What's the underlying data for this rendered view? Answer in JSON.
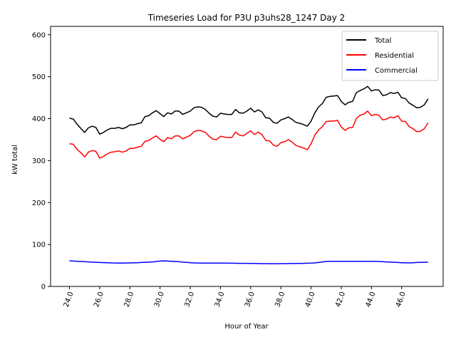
{
  "chart_data": {
    "type": "line",
    "title": "Timeseries Load for P3U p3uhs28_1247  Day 2",
    "xlabel": "Hour of Year",
    "ylabel": "kW total",
    "xlim": [
      22.75,
      48.75
    ],
    "ylim": [
      0,
      620
    ],
    "xticks": [
      24,
      26,
      28,
      30,
      32,
      34,
      36,
      38,
      40,
      42,
      44,
      46
    ],
    "xtick_labels": [
      "24.0",
      "26.0",
      "28.0",
      "30.0",
      "32.0",
      "34.0",
      "36.0",
      "38.0",
      "40.0",
      "42.0",
      "44.0",
      "46.0"
    ],
    "yticks": [
      0,
      100,
      200,
      300,
      400,
      500,
      600
    ],
    "ytick_labels": [
      "0",
      "100",
      "200",
      "300",
      "400",
      "500",
      "600"
    ],
    "legend_position": "top-right",
    "x": [
      24.0,
      24.25,
      24.5,
      24.75,
      25.0,
      25.25,
      25.5,
      25.75,
      26.0,
      26.25,
      26.5,
      26.75,
      27.0,
      27.25,
      27.5,
      27.75,
      28.0,
      28.25,
      28.5,
      28.75,
      29.0,
      29.25,
      29.5,
      29.75,
      30.0,
      30.25,
      30.5,
      30.75,
      31.0,
      31.25,
      31.5,
      31.75,
      32.0,
      32.25,
      32.5,
      32.75,
      33.0,
      33.25,
      33.5,
      33.75,
      34.0,
      34.25,
      34.5,
      34.75,
      35.0,
      35.25,
      35.5,
      35.75,
      36.0,
      36.25,
      36.5,
      36.75,
      37.0,
      37.25,
      37.5,
      37.75,
      38.0,
      38.25,
      38.5,
      38.75,
      39.0,
      39.25,
      39.5,
      39.75,
      40.0,
      40.25,
      40.5,
      40.75,
      41.0,
      41.25,
      41.5,
      41.75,
      42.0,
      42.25,
      42.5,
      42.75,
      43.0,
      43.25,
      43.5,
      43.75,
      44.0,
      44.25,
      44.5,
      44.75,
      45.0,
      45.25,
      45.5,
      45.75,
      46.0,
      46.25,
      46.5,
      46.75,
      47.0,
      47.25,
      47.5,
      47.75
    ],
    "series": [
      {
        "name": "Total",
        "color": "#000000",
        "values": [
          401,
          399,
          387,
          377,
          367,
          378,
          382,
          379,
          363,
          367,
          373,
          377,
          377,
          379,
          376,
          379,
          385,
          385,
          388,
          390,
          405,
          407,
          414,
          419,
          412,
          405,
          414,
          411,
          418,
          418,
          410,
          414,
          418,
          426,
          428,
          427,
          422,
          413,
          406,
          404,
          413,
          411,
          410,
          410,
          422,
          414,
          413,
          418,
          425,
          416,
          421,
          416,
          402,
          401,
          391,
          389,
          397,
          400,
          404,
          398,
          391,
          389,
          386,
          382,
          394,
          414,
          428,
          436,
          451,
          453,
          454,
          455,
          441,
          433,
          439,
          441,
          462,
          467,
          471,
          477,
          466,
          469,
          468,
          455,
          457,
          462,
          460,
          463,
          450,
          448,
          437,
          432,
          426,
          427,
          433,
          447
        ]
      },
      {
        "name": "Residential",
        "color": "#ff0000",
        "values": [
          340,
          339,
          327,
          319,
          309,
          320,
          324,
          322,
          306,
          310,
          316,
          320,
          321,
          323,
          320,
          323,
          329,
          329,
          332,
          334,
          346,
          348,
          354,
          359,
          351,
          345,
          355,
          352,
          359,
          359,
          352,
          356,
          360,
          369,
          372,
          371,
          367,
          358,
          351,
          350,
          358,
          356,
          355,
          355,
          368,
          361,
          359,
          365,
          371,
          362,
          368,
          362,
          348,
          347,
          337,
          334,
          343,
          345,
          350,
          344,
          336,
          333,
          330,
          326,
          340,
          361,
          373,
          381,
          393,
          394,
          394,
          396,
          380,
          372,
          378,
          379,
          400,
          408,
          411,
          418,
          407,
          410,
          408,
          397,
          399,
          404,
          402,
          407,
          394,
          393,
          381,
          376,
          369,
          370,
          376,
          390
        ]
      },
      {
        "name": "Commercial",
        "color": "#0000ff",
        "values": [
          61,
          60.5,
          60,
          59.5,
          59,
          58.5,
          58,
          57.5,
          57,
          56.8,
          56.5,
          56,
          55.8,
          55.7,
          55.7,
          55.8,
          56,
          56.2,
          56.5,
          57,
          57.5,
          58,
          58.5,
          59.5,
          60.5,
          61,
          60.5,
          60,
          59.5,
          59,
          58,
          57.5,
          56.5,
          56,
          55.8,
          55.6,
          55.6,
          55.7,
          55.7,
          55.6,
          55.5,
          55.5,
          55.4,
          55.3,
          55.2,
          55.1,
          55,
          55,
          54.9,
          54.8,
          54.6,
          54.4,
          54.3,
          54.2,
          54.2,
          54.2,
          54.3,
          54.4,
          54.5,
          54.6,
          54.7,
          54.8,
          55,
          55.3,
          55.5,
          56,
          57,
          58.5,
          59.5,
          59.8,
          60,
          60,
          60,
          60,
          60,
          60,
          60,
          60,
          60,
          60,
          60,
          59.8,
          59.5,
          59,
          58.5,
          58,
          57.5,
          57,
          56.5,
          56.2,
          56,
          56.5,
          57,
          57.3,
          57.5,
          57.8
        ]
      }
    ]
  }
}
